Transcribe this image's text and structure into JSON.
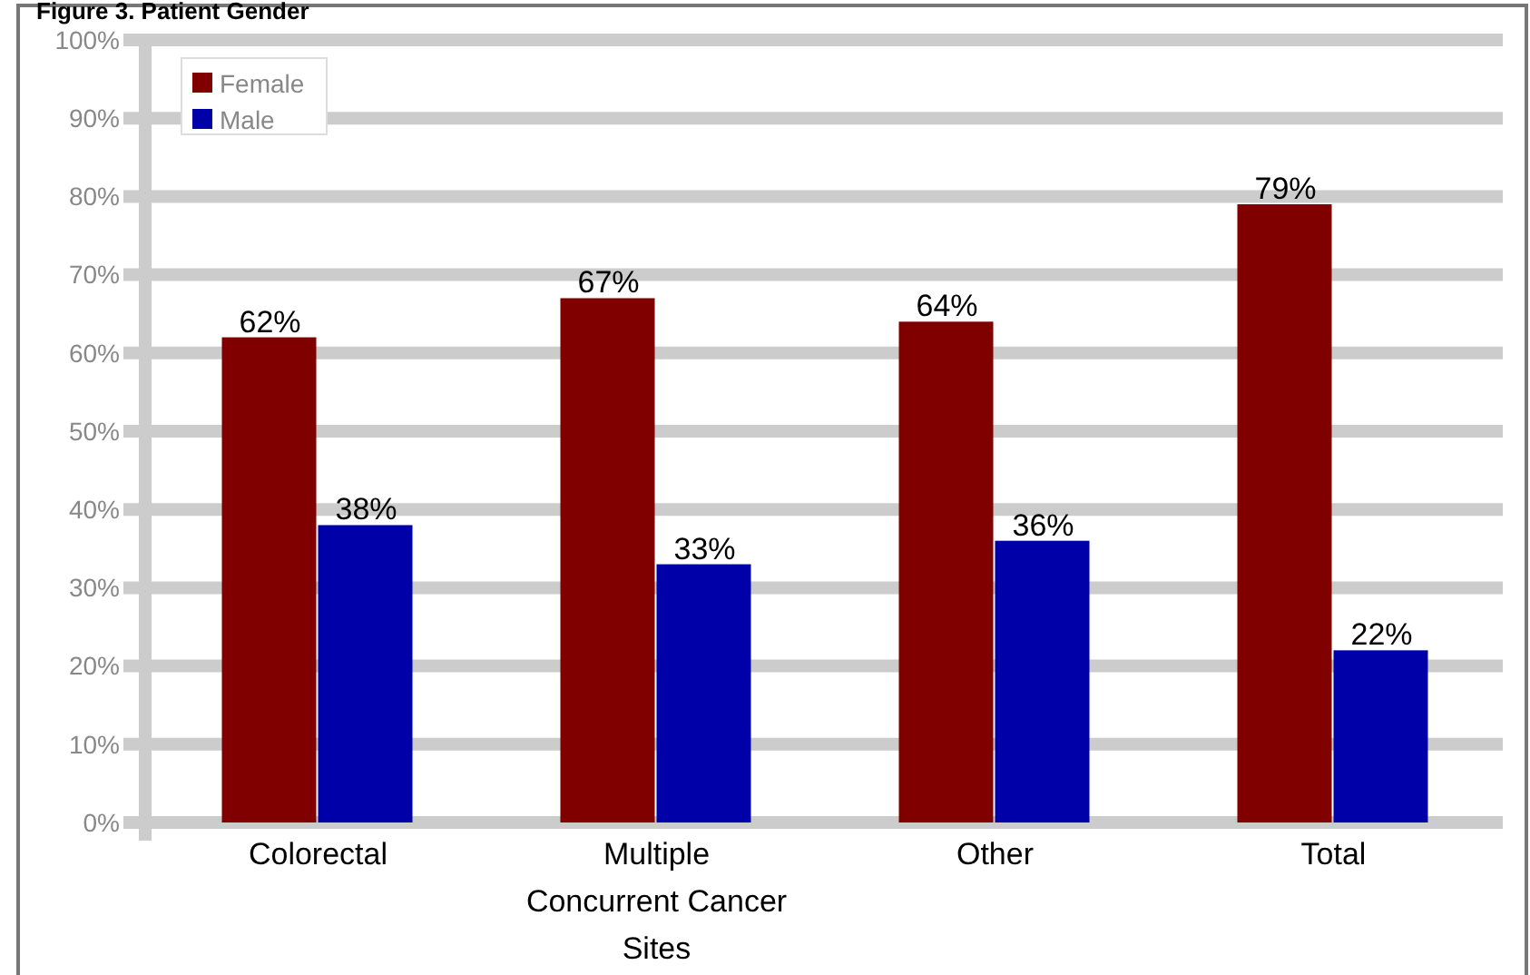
{
  "chart_data": {
    "type": "bar",
    "title": "Figure 3. Patient Gender",
    "categories": [
      "Colorectal",
      "Multiple Concurrent Cancer Sites",
      "Other",
      "Total"
    ],
    "series": [
      {
        "name": "Female",
        "color": "#800000",
        "values": [
          62,
          67,
          64,
          79
        ],
        "value_labels": [
          "62%",
          "67%",
          "64%",
          "79%"
        ]
      },
      {
        "name": "Male",
        "color": "#0000a8",
        "values": [
          38,
          33,
          36,
          22
        ],
        "value_labels": [
          "38%",
          "33%",
          "36%",
          "22%"
        ]
      }
    ],
    "ylim": [
      0,
      100
    ],
    "yticks": [
      {
        "value": 0,
        "label": "0%"
      },
      {
        "value": 10,
        "label": "10%"
      },
      {
        "value": 20,
        "label": "20%"
      },
      {
        "value": 30,
        "label": "30%"
      },
      {
        "value": 40,
        "label": "40%"
      },
      {
        "value": 50,
        "label": "50%"
      },
      {
        "value": 60,
        "label": "60%"
      },
      {
        "value": 70,
        "label": "70%"
      },
      {
        "value": 80,
        "label": "80%"
      },
      {
        "value": 90,
        "label": "90%"
      },
      {
        "value": 100,
        "label": "100%"
      }
    ],
    "grid": "y",
    "legend": "top left"
  }
}
